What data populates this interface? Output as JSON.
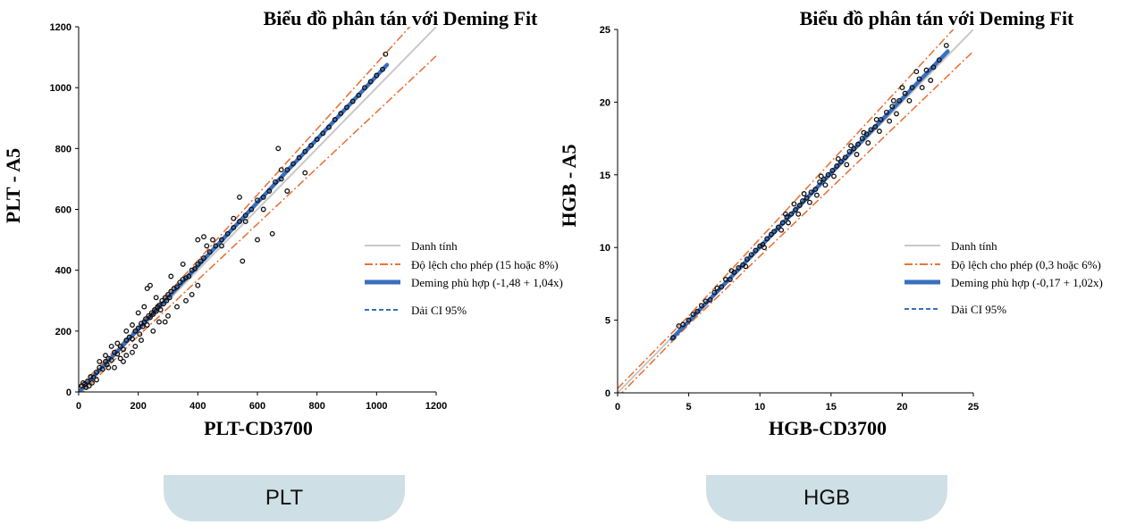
{
  "charts": [
    {
      "key": "plt",
      "title": "Biểu đồ phân tán với Deming Fit",
      "xlabel": "PLT-CD3700",
      "ylabel": "PLT - A5",
      "ticks": [
        "0",
        "200",
        "400",
        "600",
        "800",
        "1000",
        "1200"
      ],
      "legend": {
        "identity": "Danh tính",
        "allowable": "Độ lệch cho phép (15 hoặc 8%)",
        "deming": "Deming phù hợp (-1,48 + 1,04x)",
        "ci": "Dải CI 95%"
      },
      "tab_label": "PLT"
    },
    {
      "key": "hgb",
      "title": "Biểu đồ phân tán với Deming Fit",
      "xlabel": "HGB-CD3700",
      "ylabel": "HGB - A5",
      "ticks": [
        "0",
        "5",
        "10",
        "15",
        "20",
        "25"
      ],
      "legend": {
        "identity": "Danh tính",
        "allowable": "Độ lệch cho phép (0,3 hoặc 6%)",
        "deming": "Deming phù hợp (-0,17 + 1,02x)",
        "ci": "Dải CI 95%"
      },
      "tab_label": "HGB"
    }
  ],
  "chart_data": [
    {
      "type": "scatter",
      "title": "Biểu đồ phân tán với Deming Fit",
      "xlabel": "PLT-CD3700",
      "ylabel": "PLT - A5",
      "xlim": [
        0,
        1200
      ],
      "ylim": [
        0,
        1200
      ],
      "xticks": [
        0,
        200,
        400,
        600,
        800,
        1000,
        1200
      ],
      "yticks": [
        0,
        200,
        400,
        600,
        800,
        1000,
        1200
      ],
      "identity_line": {
        "intercept": 0,
        "slope": 1
      },
      "allowable_bias": {
        "absolute": 15,
        "percent": 8
      },
      "deming_fit": {
        "intercept": -1.48,
        "slope": 1.04,
        "x_range": [
          0,
          1035
        ]
      },
      "points": [
        [
          10,
          20
        ],
        [
          20,
          25
        ],
        [
          30,
          35
        ],
        [
          40,
          50
        ],
        [
          50,
          48
        ],
        [
          60,
          65
        ],
        [
          70,
          80
        ],
        [
          80,
          75
        ],
        [
          90,
          100
        ],
        [
          95,
          90
        ],
        [
          100,
          110
        ],
        [
          110,
          105
        ],
        [
          120,
          130
        ],
        [
          130,
          125
        ],
        [
          140,
          150
        ],
        [
          150,
          140
        ],
        [
          160,
          170
        ],
        [
          170,
          180
        ],
        [
          180,
          175
        ],
        [
          190,
          200
        ],
        [
          200,
          210
        ],
        [
          205,
          190
        ],
        [
          210,
          225
        ],
        [
          215,
          215
        ],
        [
          220,
          230
        ],
        [
          225,
          240
        ],
        [
          230,
          220
        ],
        [
          235,
          250
        ],
        [
          240,
          245
        ],
        [
          245,
          260
        ],
        [
          250,
          255
        ],
        [
          255,
          270
        ],
        [
          260,
          265
        ],
        [
          265,
          280
        ],
        [
          270,
          285
        ],
        [
          275,
          270
        ],
        [
          280,
          300
        ],
        [
          285,
          290
        ],
        [
          290,
          310
        ],
        [
          295,
          300
        ],
        [
          300,
          320
        ],
        [
          305,
          310
        ],
        [
          310,
          330
        ],
        [
          320,
          340
        ],
        [
          330,
          345
        ],
        [
          340,
          360
        ],
        [
          350,
          370
        ],
        [
          360,
          375
        ],
        [
          370,
          380
        ],
        [
          380,
          400
        ],
        [
          390,
          405
        ],
        [
          400,
          420
        ],
        [
          410,
          430
        ],
        [
          420,
          440
        ],
        [
          440,
          460
        ],
        [
          460,
          480
        ],
        [
          480,
          500
        ],
        [
          500,
          520
        ],
        [
          520,
          540
        ],
        [
          540,
          560
        ],
        [
          560,
          580
        ],
        [
          580,
          600
        ],
        [
          600,
          630
        ],
        [
          620,
          640
        ],
        [
          640,
          660
        ],
        [
          660,
          690
        ],
        [
          680,
          700
        ],
        [
          700,
          730
        ],
        [
          720,
          750
        ],
        [
          740,
          770
        ],
        [
          760,
          790
        ],
        [
          780,
          810
        ],
        [
          800,
          830
        ],
        [
          820,
          850
        ],
        [
          840,
          870
        ],
        [
          860,
          895
        ],
        [
          880,
          915
        ],
        [
          900,
          935
        ],
        [
          920,
          955
        ],
        [
          940,
          975
        ],
        [
          960,
          1000
        ],
        [
          980,
          1020
        ],
        [
          1000,
          1040
        ],
        [
          1020,
          1060
        ],
        [
          1030,
          1110
        ],
        [
          160,
          200
        ],
        [
          180,
          220
        ],
        [
          200,
          260
        ],
        [
          220,
          280
        ],
        [
          230,
          340
        ],
        [
          240,
          350
        ],
        [
          260,
          310
        ],
        [
          310,
          380
        ],
        [
          350,
          420
        ],
        [
          400,
          500
        ],
        [
          420,
          510
        ],
        [
          430,
          480
        ],
        [
          450,
          500
        ],
        [
          480,
          480
        ],
        [
          520,
          570
        ],
        [
          540,
          640
        ],
        [
          560,
          560
        ],
        [
          600,
          500
        ],
        [
          620,
          600
        ],
        [
          650,
          520
        ],
        [
          670,
          800
        ],
        [
          680,
          730
        ],
        [
          700,
          660
        ],
        [
          760,
          720
        ],
        [
          550,
          430
        ],
        [
          150,
          100
        ],
        [
          120,
          80
        ],
        [
          180,
          130
        ],
        [
          250,
          200
        ],
        [
          290,
          230
        ],
        [
          330,
          280
        ],
        [
          360,
          300
        ],
        [
          380,
          320
        ],
        [
          400,
          350
        ],
        [
          270,
          230
        ],
        [
          210,
          170
        ],
        [
          190,
          150
        ],
        [
          140,
          110
        ],
        [
          100,
          80
        ],
        [
          300,
          250
        ],
        [
          160,
          120
        ],
        [
          130,
          160
        ],
        [
          110,
          150
        ],
        [
          90,
          120
        ],
        [
          70,
          100
        ],
        [
          60,
          40
        ],
        [
          45,
          30
        ],
        [
          35,
          20
        ],
        [
          25,
          15
        ],
        [
          15,
          30
        ]
      ]
    },
    {
      "type": "scatter",
      "title": "Biểu đồ phân tán với Deming Fit",
      "xlabel": "HGB-CD3700",
      "ylabel": "HGB - A5",
      "xlim": [
        0,
        25
      ],
      "ylim": [
        0,
        25
      ],
      "xticks": [
        0,
        5,
        10,
        15,
        20,
        25
      ],
      "yticks": [
        0,
        5,
        10,
        15,
        20,
        25
      ],
      "identity_line": {
        "intercept": 0,
        "slope": 1
      },
      "allowable_bias": {
        "absolute": 0.3,
        "percent": 6
      },
      "deming_fit": {
        "intercept": -0.17,
        "slope": 1.02,
        "x_range": [
          3.8,
          23.2
        ]
      },
      "points": [
        [
          3.9,
          3.8
        ],
        [
          4.3,
          4.6
        ],
        [
          4.6,
          4.7
        ],
        [
          5.0,
          5.0
        ],
        [
          5.3,
          5.4
        ],
        [
          5.6,
          5.6
        ],
        [
          5.9,
          6.0
        ],
        [
          6.2,
          6.3
        ],
        [
          6.5,
          6.4
        ],
        [
          6.8,
          6.9
        ],
        [
          7.0,
          7.2
        ],
        [
          7.3,
          7.3
        ],
        [
          7.6,
          7.8
        ],
        [
          7.9,
          7.8
        ],
        [
          8.2,
          8.3
        ],
        [
          8.5,
          8.6
        ],
        [
          8.8,
          8.8
        ],
        [
          9.1,
          9.2
        ],
        [
          9.4,
          9.5
        ],
        [
          9.7,
          9.8
        ],
        [
          10.0,
          10.1
        ],
        [
          10.2,
          10.2
        ],
        [
          10.5,
          10.6
        ],
        [
          10.8,
          10.9
        ],
        [
          11.0,
          11.1
        ],
        [
          11.3,
          11.4
        ],
        [
          11.6,
          11.7
        ],
        [
          11.9,
          12.1
        ],
        [
          12.2,
          12.3
        ],
        [
          12.5,
          12.6
        ],
        [
          12.8,
          12.9
        ],
        [
          13.0,
          13.2
        ],
        [
          13.3,
          13.4
        ],
        [
          13.6,
          13.8
        ],
        [
          13.9,
          14.0
        ],
        [
          14.2,
          14.5
        ],
        [
          14.5,
          14.7
        ],
        [
          14.8,
          15.0
        ],
        [
          15.1,
          15.3
        ],
        [
          15.4,
          15.6
        ],
        [
          15.7,
          15.9
        ],
        [
          16.0,
          16.2
        ],
        [
          16.3,
          16.6
        ],
        [
          16.6,
          16.8
        ],
        [
          16.9,
          17.1
        ],
        [
          17.2,
          17.5
        ],
        [
          17.5,
          17.8
        ],
        [
          17.8,
          18.1
        ],
        [
          18.1,
          18.3
        ],
        [
          18.5,
          18.8
        ],
        [
          18.9,
          19.3
        ],
        [
          19.3,
          19.7
        ],
        [
          19.8,
          20.1
        ],
        [
          20.2,
          20.6
        ],
        [
          20.7,
          21.0
        ],
        [
          21.2,
          21.6
        ],
        [
          21.7,
          22.2
        ],
        [
          22.2,
          22.4
        ],
        [
          22.6,
          22.9
        ],
        [
          23.1,
          23.9
        ],
        [
          8.0,
          8.4
        ],
        [
          9.0,
          8.7
        ],
        [
          10.3,
          10.0
        ],
        [
          11.5,
          11.2
        ],
        [
          12.0,
          11.7
        ],
        [
          12.7,
          12.3
        ],
        [
          13.5,
          13.1
        ],
        [
          14.0,
          13.6
        ],
        [
          14.6,
          14.3
        ],
        [
          15.2,
          14.9
        ],
        [
          16.1,
          15.7
        ],
        [
          16.8,
          16.4
        ],
        [
          17.6,
          17.2
        ],
        [
          18.4,
          18.0
        ],
        [
          19.1,
          18.7
        ],
        [
          19.6,
          19.2
        ],
        [
          20.5,
          20.1
        ],
        [
          21.4,
          21.0
        ],
        [
          22.0,
          21.5
        ],
        [
          13.1,
          13.7
        ],
        [
          14.3,
          14.9
        ],
        [
          15.5,
          16.1
        ],
        [
          16.4,
          17.0
        ],
        [
          17.3,
          17.9
        ],
        [
          18.2,
          18.8
        ],
        [
          19.4,
          20.1
        ],
        [
          20.0,
          21.0
        ],
        [
          21.0,
          22.1
        ],
        [
          11.8,
          12.3
        ],
        [
          12.4,
          13.0
        ]
      ]
    }
  ]
}
